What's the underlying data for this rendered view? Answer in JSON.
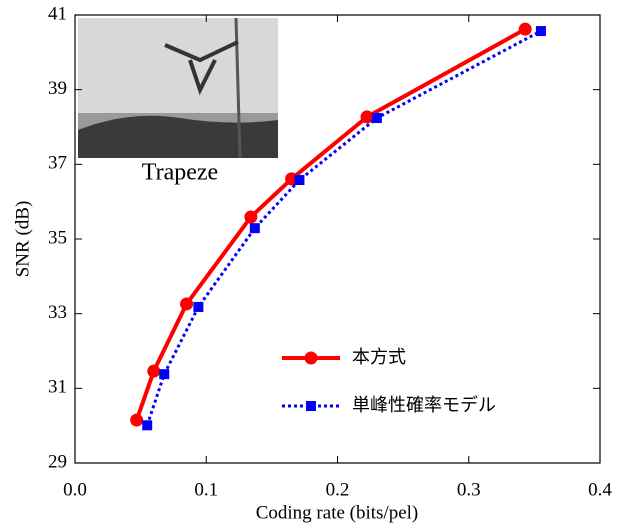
{
  "chart_data": {
    "type": "line",
    "xlabel": "Coding rate (bits/pel)",
    "ylabel": "SNR (dB)",
    "inset_label": "Trapeze",
    "series": [
      {
        "name": "本方式",
        "color": "#ff0000",
        "marker": "circle",
        "linestyle": "solid",
        "x": [
          0.047,
          0.06,
          0.085,
          0.134,
          0.165,
          0.2225,
          0.343
        ],
        "values": [
          30.15,
          31.46,
          33.26,
          35.59,
          36.61,
          38.27,
          40.62
        ]
      },
      {
        "name": "単峰性確率モデル",
        "color": "#0000ff",
        "marker": "square",
        "linestyle": "dotted",
        "x": [
          0.055,
          0.068,
          0.094,
          0.137,
          0.171,
          0.23,
          0.355
        ],
        "values": [
          30.01,
          31.38,
          33.18,
          35.29,
          36.58,
          38.24,
          40.57
        ]
      }
    ],
    "xlim": [
      0,
      0.4
    ],
    "xticks": [
      {
        "value": 0,
        "label": "0.0"
      },
      0.1,
      0.2,
      0.3,
      0.4
    ],
    "ylim": [
      29,
      41
    ],
    "yticks": [
      29,
      31,
      33,
      35,
      37,
      39,
      41
    ],
    "legend": "lower-right"
  }
}
